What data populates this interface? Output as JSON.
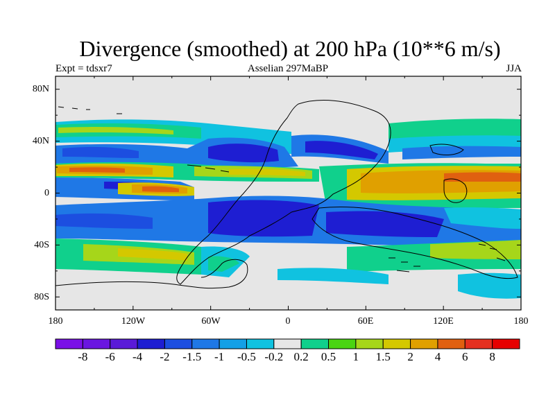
{
  "title": "Divergence (smoothed) at 200 hPa (10**6 m/s)",
  "subtitle_left": "Expt = tdsxr7",
  "subtitle_center": "Asselian 297MaBP",
  "subtitle_right": "JJA",
  "lat_ticks": [
    "80N",
    "40N",
    "0",
    "40S",
    "80S"
  ],
  "lon_ticks": [
    "180",
    "120W",
    "60W",
    "0",
    "60E",
    "120E",
    "180"
  ],
  "colorbar": {
    "labels": [
      "-8",
      "-6",
      "-4",
      "-2",
      "-1.5",
      "-1",
      "-0.5",
      "-0.2",
      "0.2",
      "0.5",
      "1",
      "1.5",
      "2",
      "4",
      "6",
      "8"
    ],
    "colors": [
      "#7a10e6",
      "#6a16e0",
      "#5a1bd8",
      "#1e1ed2",
      "#1c4ee0",
      "#1f78e6",
      "#14a0e6",
      "#10c2e0",
      "#e6e6e6",
      "#10d08c",
      "#4ad412",
      "#a6d61a",
      "#d4c800",
      "#e0a000",
      "#e06010",
      "#e53020",
      "#e60000"
    ]
  },
  "map": {
    "background_color": "#e6e6e6"
  }
}
